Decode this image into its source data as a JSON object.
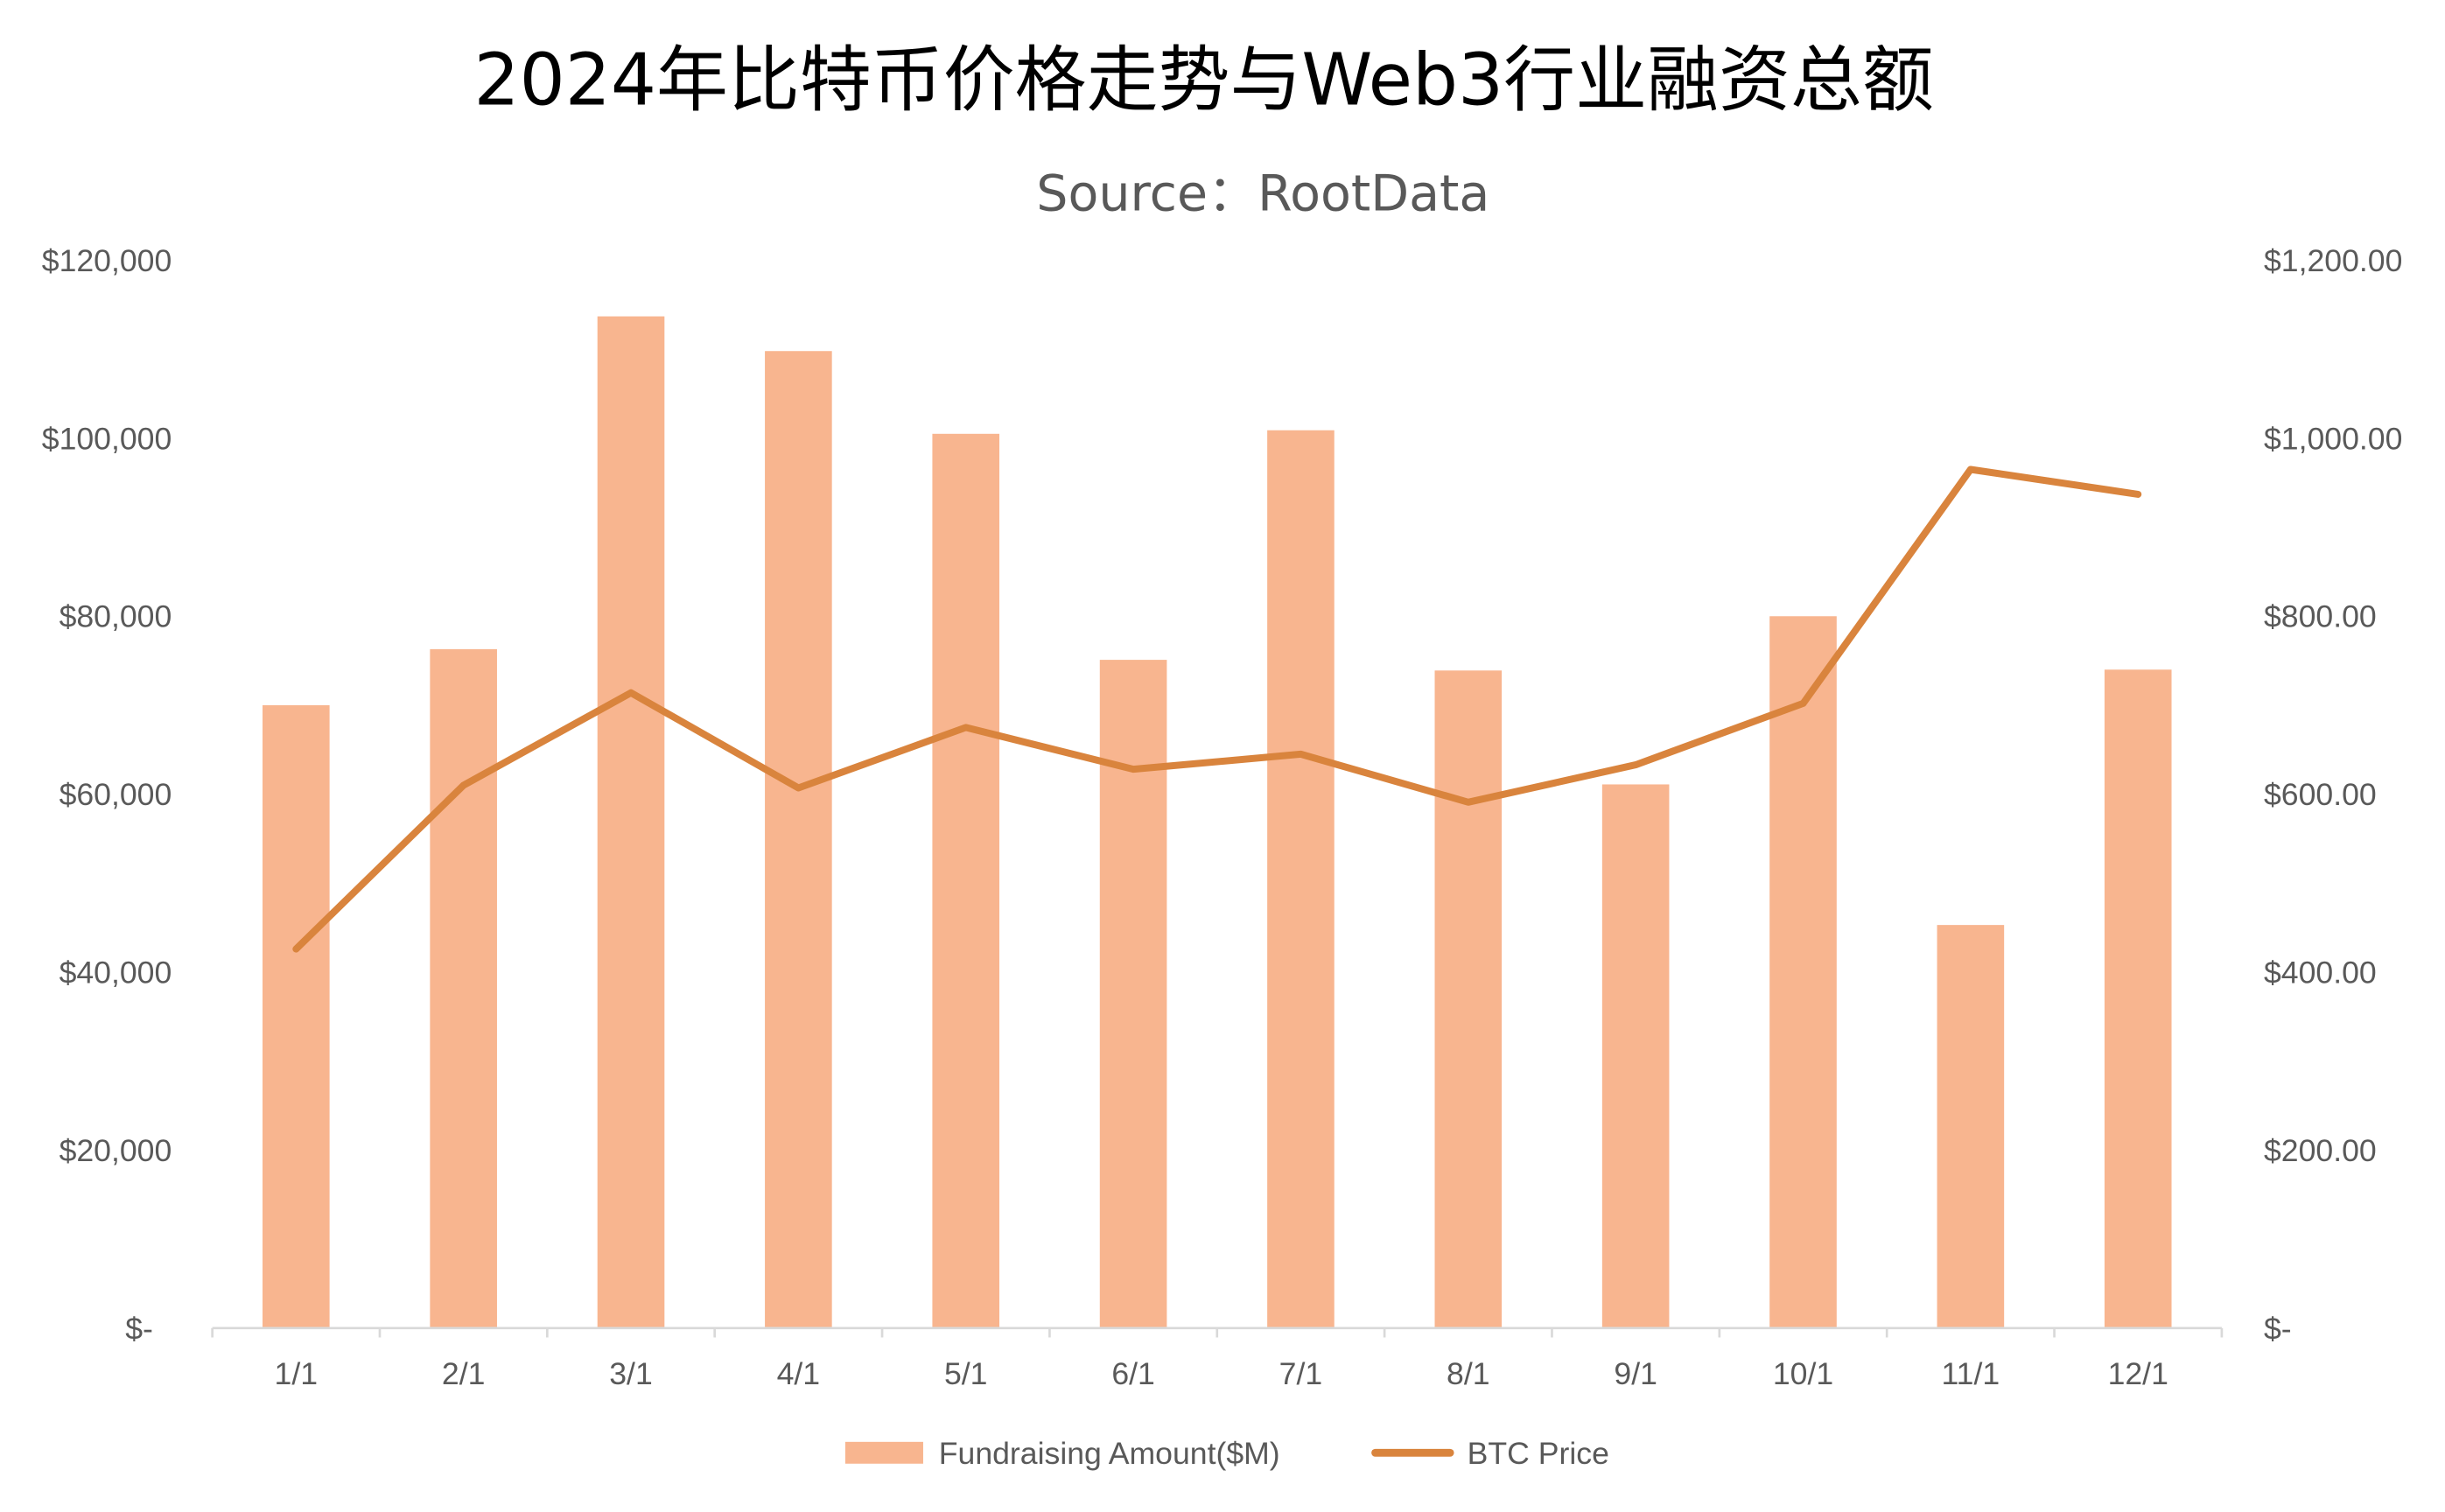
{
  "chart_data": {
    "type": "bar+line",
    "title": "2024年比特币价格走势与Web3行业融资总额",
    "subtitle": "Source：RootData",
    "categories": [
      "1/1",
      "2/1",
      "3/1",
      "4/1",
      "5/1",
      "6/1",
      "7/1",
      "8/1",
      "9/1",
      "10/1",
      "11/1",
      "12/1"
    ],
    "series": [
      {
        "name": "Fundraising Amount($M)",
        "type": "bar",
        "axis": "right",
        "color": "#F8B58F",
        "values": [
          700,
          763,
          1137,
          1098,
          1005,
          751,
          1009,
          739,
          611,
          800,
          453,
          740
        ]
      },
      {
        "name": "BTC Price",
        "type": "line",
        "axis": "left",
        "color": "#D9843D",
        "values": [
          42600,
          61000,
          71400,
          60700,
          67500,
          62800,
          64500,
          59100,
          63300,
          70200,
          96500,
          93700
        ]
      }
    ],
    "left_axis": {
      "range": [
        0,
        120000
      ],
      "ticks": [
        "$-",
        "$20,000",
        "$40,000",
        "$60,000",
        "$80,000",
        "$100,000",
        "$120,000"
      ]
    },
    "right_axis": {
      "range": [
        0,
        1200
      ],
      "ticks": [
        "$-",
        "$200.00",
        "$400.00",
        "$600.00",
        "$800.00",
        "$1,000.00",
        "$1,200.00"
      ]
    },
    "grid": false,
    "legend_position": "bottom"
  }
}
